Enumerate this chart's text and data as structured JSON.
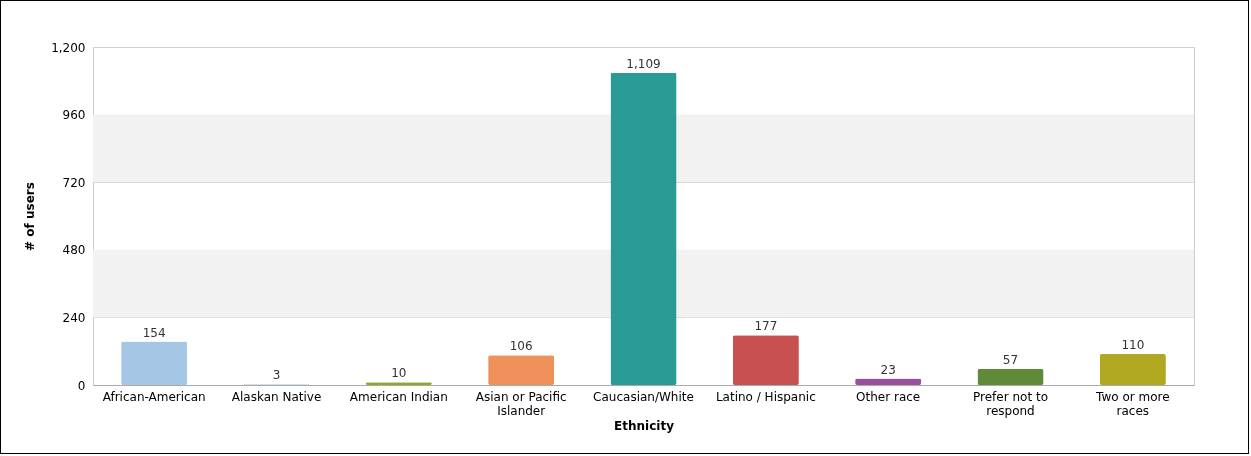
{
  "chart_data": {
    "type": "bar",
    "xlabel": "Ethnicity",
    "ylabel": "# of users",
    "categories": [
      "African-American",
      "Alaskan Native",
      "American Indian",
      "Asian or Pacific Islander",
      "Caucasian/White",
      "Latino / Hispanic",
      "Other race",
      "Prefer not to respond",
      "Two or more races"
    ],
    "values": [
      154,
      3,
      10,
      106,
      1109,
      177,
      23,
      57,
      110
    ],
    "colors": [
      "#a6c6e6",
      "#8fb6d8",
      "#8aab2a",
      "#f0905a",
      "#2a9a94",
      "#c85050",
      "#9a4f9a",
      "#5f8a3a",
      "#b0a820"
    ],
    "value_labels": [
      "154",
      "3",
      "10",
      "106",
      "1,109",
      "177",
      "23",
      "57",
      "110"
    ],
    "ylim": [
      0,
      1200
    ],
    "yticks": [
      0,
      240,
      480,
      720,
      960,
      {
        "value": 1200,
        "label": "1,200"
      }
    ],
    "bands": [
      {
        "axis": "y",
        "from": 240,
        "to": 480,
        "color": "#f2f2f2"
      },
      {
        "axis": "y",
        "from": 720,
        "to": 960,
        "color": "#f2f2f2"
      }
    ],
    "grid": "y",
    "data_labels": true
  }
}
